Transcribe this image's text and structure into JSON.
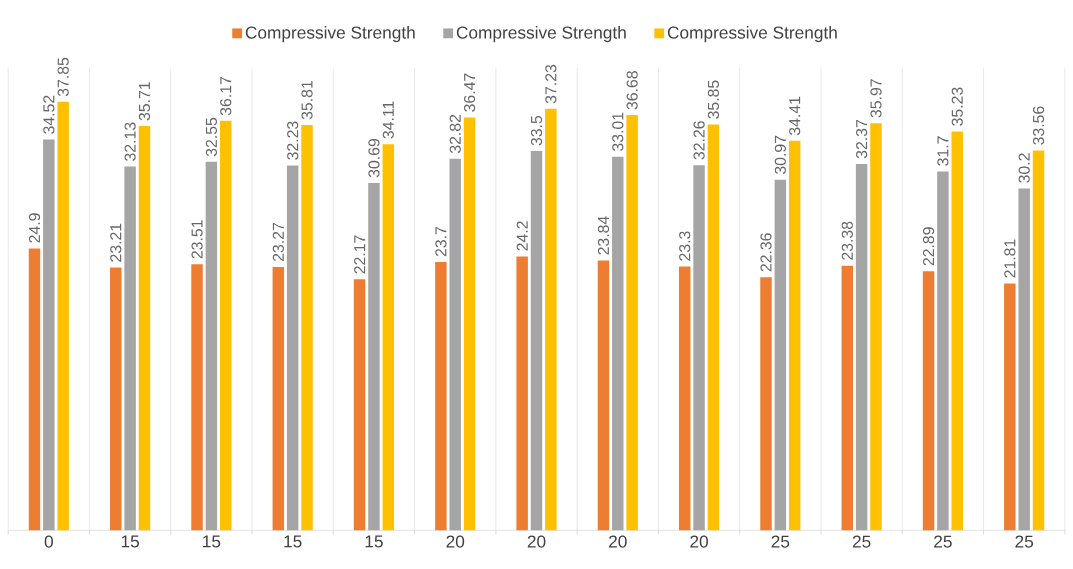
{
  "chart_data": {
    "type": "bar",
    "categories": [
      "0",
      "15",
      "15",
      "15",
      "15",
      "20",
      "20",
      "20",
      "20",
      "25",
      "25",
      "25",
      "25"
    ],
    "series": [
      {
        "name": "Compressive Strength",
        "color": "#ed7d31",
        "values": [
          24.9,
          23.21,
          23.51,
          23.27,
          22.17,
          23.7,
          24.2,
          23.84,
          23.3,
          22.36,
          23.38,
          22.89,
          21.81
        ]
      },
      {
        "name": "Compressive Strength",
        "color": "#a5a5a5",
        "values": [
          34.52,
          32.13,
          32.55,
          32.23,
          30.69,
          32.82,
          33.5,
          33.01,
          32.26,
          30.97,
          32.37,
          31.7,
          30.2
        ]
      },
      {
        "name": "Compressive Strength",
        "color": "#ffc000",
        "values": [
          37.85,
          35.71,
          36.17,
          35.81,
          34.11,
          36.47,
          37.23,
          36.68,
          35.85,
          34.41,
          35.97,
          35.23,
          33.56
        ]
      }
    ],
    "data_labels": true,
    "grid": "x",
    "legend": "top"
  }
}
